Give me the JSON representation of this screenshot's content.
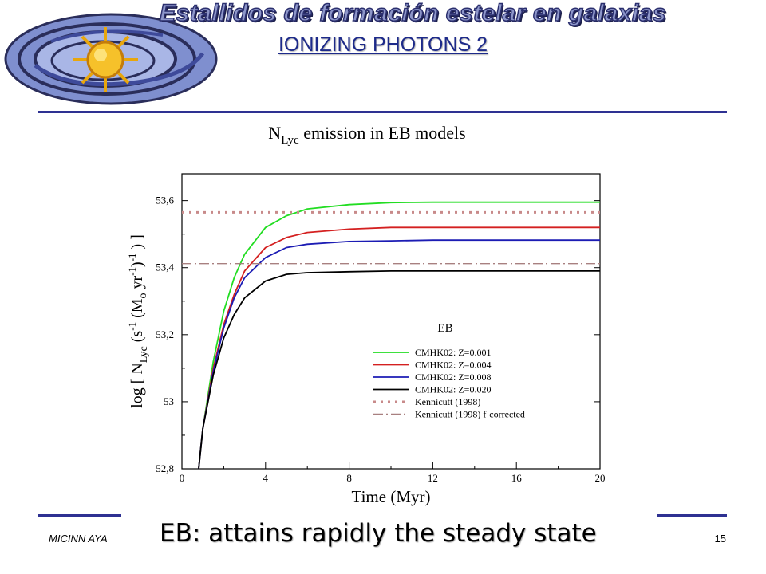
{
  "header": {
    "banner_text": "Estallidos de formación estelar en galaxias",
    "slide_title": "IONIZING PHOTONS 2"
  },
  "footer": {
    "left_text": "MICINN AYA",
    "page_number": "15",
    "caption": "EB: attains rapidly the steady state"
  },
  "colors": {
    "accent": "#2e3192",
    "title": "#1d2a8a"
  },
  "chart_data": {
    "type": "line",
    "title": {
      "main": "N",
      "sub": "Lyc",
      "rest": " emission in EB models"
    },
    "xlabel": "Time (Myr)",
    "ylabel": "log [ N_Lyc (s^-1 (M_o yr^-1)^-1) ]",
    "xlim": [
      0,
      20
    ],
    "ylim": [
      52.8,
      53.68
    ],
    "xticks": [
      0,
      4,
      8,
      12,
      16,
      20
    ],
    "xtick_labels": [
      "0",
      "4",
      "8",
      "12",
      "16",
      "20"
    ],
    "yticks": [
      52.8,
      53.0,
      53.2,
      53.4,
      53.6
    ],
    "ytick_labels": [
      "52,8",
      "53",
      "53,2",
      "53,4",
      "53,6"
    ],
    "grid": false,
    "legend_title": "EB",
    "legend_position": "lower-right",
    "series": [
      {
        "name": "CMHK02: Z=0.001",
        "color": "#22dd22",
        "style": "solid",
        "x": [
          0.8,
          1.0,
          1.5,
          2.0,
          2.5,
          3.0,
          4.0,
          5.0,
          6.0,
          8.0,
          10.0,
          12.0,
          16.0,
          20.0
        ],
        "y": [
          52.8,
          52.92,
          53.12,
          53.27,
          53.37,
          53.44,
          53.52,
          53.555,
          53.575,
          53.588,
          53.594,
          53.595,
          53.595,
          53.595
        ]
      },
      {
        "name": "CMHK02: Z=0.004",
        "color": "#d42020",
        "style": "solid",
        "x": [
          0.8,
          1.0,
          1.5,
          2.0,
          2.5,
          3.0,
          4.0,
          5.0,
          6.0,
          8.0,
          10.0,
          12.0,
          16.0,
          20.0
        ],
        "y": [
          52.8,
          52.92,
          53.1,
          53.23,
          53.32,
          53.39,
          53.46,
          53.49,
          53.505,
          53.515,
          53.52,
          53.52,
          53.52,
          53.52
        ]
      },
      {
        "name": "CMHK02: Z=0.008",
        "color": "#1c1cb4",
        "style": "solid",
        "x": [
          0.8,
          1.0,
          1.5,
          2.0,
          2.5,
          3.0,
          4.0,
          5.0,
          6.0,
          8.0,
          10.0,
          12.0,
          16.0,
          20.0
        ],
        "y": [
          52.8,
          52.92,
          53.09,
          53.22,
          53.31,
          53.37,
          53.43,
          53.46,
          53.47,
          53.478,
          53.48,
          53.482,
          53.482,
          53.482
        ]
      },
      {
        "name": "CMHK02: Z=0.020",
        "color": "#000000",
        "style": "solid",
        "x": [
          0.8,
          1.0,
          1.5,
          2.0,
          2.5,
          3.0,
          4.0,
          5.0,
          6.0,
          8.0,
          10.0,
          12.0,
          16.0,
          20.0
        ],
        "y": [
          52.8,
          52.92,
          53.08,
          53.19,
          53.26,
          53.31,
          53.36,
          53.38,
          53.385,
          53.388,
          53.39,
          53.39,
          53.39,
          53.39
        ]
      },
      {
        "name": "Kennicutt (1998)",
        "color": "#c88a8a",
        "style": "dotted",
        "x": [
          0,
          20
        ],
        "y": [
          53.565,
          53.565
        ]
      },
      {
        "name": "Kennicutt (1998) f-corrected",
        "color": "#a88080",
        "style": "dashdot",
        "x": [
          0,
          20
        ],
        "y": [
          53.412,
          53.412
        ]
      }
    ]
  }
}
